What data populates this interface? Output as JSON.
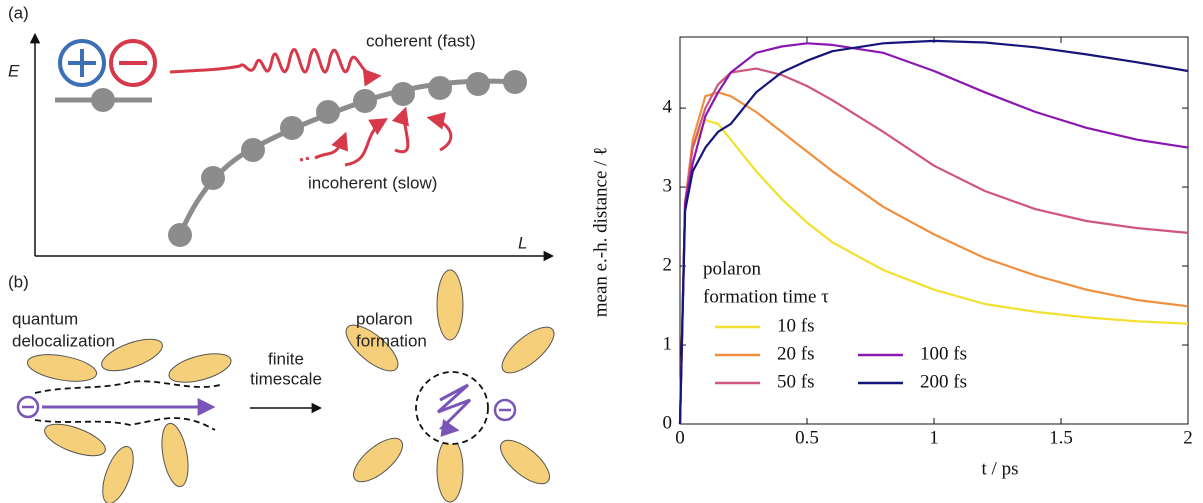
{
  "panel_a": {
    "label": "(a)",
    "y_axis": "E",
    "x_axis": "L",
    "coherent": "coherent (fast)",
    "incoherent": "incoherent (slow)"
  },
  "panel_b": {
    "label": "(b)",
    "left_caption": [
      "quantum",
      "delocalization"
    ],
    "arrow_caption": [
      "finite",
      "timescale"
    ],
    "right_caption": [
      "polaron",
      "formation"
    ]
  },
  "chart_data": {
    "type": "line",
    "x_label": "t / ps",
    "y_label": "mean e.-h. distance / ℓ",
    "legend_title": [
      "polaron",
      "formation time τ"
    ],
    "x": [
      0,
      0.02,
      0.05,
      0.1,
      0.15,
      0.2,
      0.3,
      0.4,
      0.5,
      0.6,
      0.8,
      1.0,
      1.2,
      1.4,
      1.6,
      1.8,
      2.0
    ],
    "series": [
      {
        "name": "10 fs",
        "color": "#f2e02c",
        "values": [
          0,
          2.8,
          3.5,
          3.85,
          3.8,
          3.6,
          3.2,
          2.85,
          2.55,
          2.3,
          1.95,
          1.7,
          1.52,
          1.42,
          1.35,
          1.3,
          1.27
        ]
      },
      {
        "name": "20 fs",
        "color": "#f0903f",
        "values": [
          0,
          2.8,
          3.6,
          4.15,
          4.2,
          4.15,
          3.95,
          3.7,
          3.45,
          3.2,
          2.75,
          2.4,
          2.1,
          1.88,
          1.7,
          1.57,
          1.49
        ]
      },
      {
        "name": "50 fs",
        "color": "#d0567c",
        "values": [
          0,
          2.8,
          3.5,
          4.0,
          4.3,
          4.45,
          4.5,
          4.42,
          4.28,
          4.1,
          3.7,
          3.27,
          2.95,
          2.72,
          2.57,
          2.48,
          2.42
        ]
      },
      {
        "name": "100 fs",
        "color": "#8a18b0",
        "values": [
          0,
          2.8,
          3.3,
          3.9,
          4.2,
          4.45,
          4.7,
          4.78,
          4.82,
          4.8,
          4.7,
          4.47,
          4.2,
          3.95,
          3.75,
          3.6,
          3.5
        ]
      },
      {
        "name": "200 fs",
        "color": "#15167a",
        "values": [
          0,
          2.7,
          3.2,
          3.5,
          3.7,
          3.8,
          4.2,
          4.45,
          4.6,
          4.72,
          4.82,
          4.85,
          4.83,
          4.77,
          4.68,
          4.58,
          4.47
        ]
      }
    ],
    "xlim": [
      0,
      2
    ],
    "ylim": [
      0,
      4.9
    ],
    "xticks": [
      0,
      0.5,
      1,
      1.5,
      2
    ],
    "yticks": [
      0,
      1,
      2,
      3,
      4
    ]
  }
}
